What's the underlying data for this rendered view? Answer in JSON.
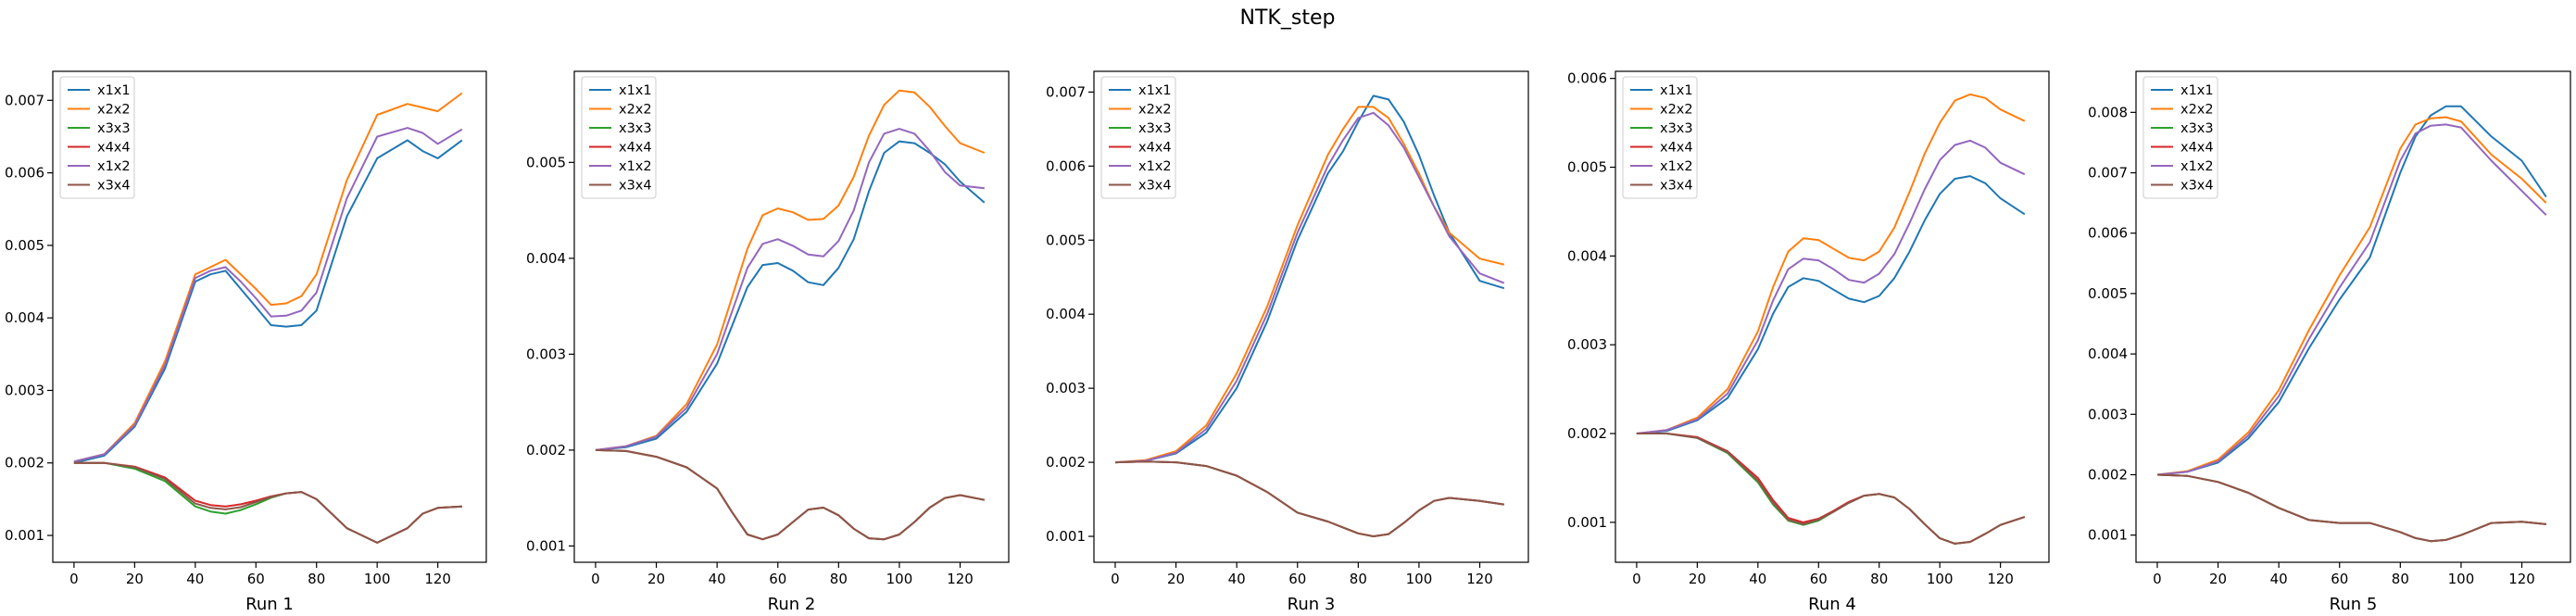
{
  "figure": {
    "title": "NTK_step"
  },
  "colors": {
    "x1x1": "#1f77b4",
    "x2x2": "#ff7f0e",
    "x3x3": "#2ca02c",
    "x4x4": "#d62728",
    "x1x2": "#9467bd",
    "x3x4": "#8c564b"
  },
  "chart_data": [
    {
      "type": "line",
      "title": "",
      "xlabel": "Run 1",
      "ylabel": "",
      "xlim": [
        -7,
        136
      ],
      "ylim": [
        0.00063,
        0.0074
      ],
      "xticks": [
        0,
        20,
        40,
        60,
        80,
        100,
        120
      ],
      "yticks": [
        0.001,
        0.002,
        0.003,
        0.004,
        0.005,
        0.006,
        0.007
      ],
      "ytick_labels": [
        "0.001",
        "0.002",
        "0.003",
        "0.004",
        "0.005",
        "0.006",
        "0.007"
      ],
      "grid": false,
      "legend": "upper-left",
      "x": [
        0,
        10,
        20,
        30,
        40,
        45,
        50,
        55,
        60,
        65,
        70,
        75,
        80,
        90,
        100,
        110,
        115,
        120,
        128
      ],
      "series": [
        {
          "name": "x1x1",
          "values": [
            0.002,
            0.0021,
            0.0025,
            0.0033,
            0.0045,
            0.0046,
            0.00465,
            0.0044,
            0.00415,
            0.0039,
            0.00388,
            0.0039,
            0.0041,
            0.0054,
            0.0062,
            0.00645,
            0.0063,
            0.0062,
            0.00645
          ]
        },
        {
          "name": "x2x2",
          "values": [
            0.00202,
            0.00212,
            0.00255,
            0.0034,
            0.0046,
            0.0047,
            0.0048,
            0.0046,
            0.0044,
            0.00418,
            0.0042,
            0.0043,
            0.0046,
            0.0059,
            0.0068,
            0.00695,
            0.0069,
            0.00685,
            0.0071
          ]
        },
        {
          "name": "x3x3",
          "values": [
            0.002,
            0.002,
            0.00192,
            0.00175,
            0.0014,
            0.00133,
            0.0013,
            0.00135,
            0.00143,
            0.00152,
            0.00158,
            0.0016,
            0.0015,
            0.0011,
            0.0009,
            0.0011,
            0.0013,
            0.00138,
            0.0014
          ]
        },
        {
          "name": "x4x4",
          "values": [
            0.002,
            0.002,
            0.00195,
            0.0018,
            0.00148,
            0.00142,
            0.0014,
            0.00143,
            0.00148,
            0.00154,
            0.00158,
            0.0016,
            0.0015,
            0.0011,
            0.0009,
            0.0011,
            0.0013,
            0.00138,
            0.0014
          ]
        },
        {
          "name": "x1x2",
          "values": [
            0.00202,
            0.00212,
            0.00252,
            0.00335,
            0.00455,
            0.00465,
            0.0047,
            0.0045,
            0.00427,
            0.00402,
            0.00403,
            0.0041,
            0.00435,
            0.00565,
            0.0065,
            0.00662,
            0.00655,
            0.0064,
            0.0066
          ]
        },
        {
          "name": "x3x4",
          "values": [
            0.002,
            0.002,
            0.00194,
            0.00178,
            0.00144,
            0.00138,
            0.00136,
            0.00139,
            0.00146,
            0.00153,
            0.00158,
            0.0016,
            0.0015,
            0.0011,
            0.0009,
            0.0011,
            0.0013,
            0.00138,
            0.0014
          ]
        }
      ]
    },
    {
      "type": "line",
      "title": "",
      "xlabel": "Run 2",
      "ylabel": "",
      "xlim": [
        -7,
        136
      ],
      "ylim": [
        0.00083,
        0.00595
      ],
      "xticks": [
        0,
        20,
        40,
        60,
        80,
        100,
        120
      ],
      "yticks": [
        0.001,
        0.002,
        0.003,
        0.004,
        0.005
      ],
      "ytick_labels": [
        "0.001",
        "0.002",
        "0.003",
        "0.004",
        "0.005"
      ],
      "grid": false,
      "legend": "upper-left",
      "x": [
        0,
        10,
        20,
        30,
        40,
        45,
        50,
        55,
        60,
        65,
        70,
        75,
        80,
        85,
        90,
        95,
        100,
        105,
        110,
        115,
        120,
        128
      ],
      "series": [
        {
          "name": "x1x1",
          "values": [
            0.002,
            0.00203,
            0.00212,
            0.0024,
            0.0029,
            0.0033,
            0.0037,
            0.00393,
            0.00395,
            0.00387,
            0.00375,
            0.00372,
            0.0039,
            0.0042,
            0.0047,
            0.0051,
            0.00522,
            0.0052,
            0.0051,
            0.00498,
            0.0048,
            0.00458
          ]
        },
        {
          "name": "x2x2",
          "values": [
            0.002,
            0.00204,
            0.00215,
            0.00248,
            0.0031,
            0.0036,
            0.0041,
            0.00445,
            0.00452,
            0.00448,
            0.0044,
            0.00441,
            0.00455,
            0.00485,
            0.00528,
            0.0056,
            0.00575,
            0.00573,
            0.00558,
            0.00538,
            0.0052,
            0.0051
          ]
        },
        {
          "name": "x3x3",
          "values": [
            0.002,
            0.00199,
            0.00193,
            0.00182,
            0.0016,
            0.00135,
            0.00112,
            0.00107,
            0.00112,
            0.00125,
            0.00138,
            0.0014,
            0.00132,
            0.00118,
            0.00108,
            0.00107,
            0.00112,
            0.00125,
            0.0014,
            0.0015,
            0.00153,
            0.00148
          ]
        },
        {
          "name": "x4x4",
          "values": [
            0.002,
            0.00199,
            0.00193,
            0.00182,
            0.0016,
            0.00135,
            0.00112,
            0.00107,
            0.00112,
            0.00125,
            0.00138,
            0.0014,
            0.00132,
            0.00118,
            0.00108,
            0.00107,
            0.00112,
            0.00125,
            0.0014,
            0.0015,
            0.00153,
            0.00148
          ]
        },
        {
          "name": "x1x2",
          "values": [
            0.002,
            0.00204,
            0.00214,
            0.00244,
            0.003,
            0.00345,
            0.0039,
            0.00415,
            0.0042,
            0.00413,
            0.00404,
            0.00402,
            0.00418,
            0.0045,
            0.005,
            0.0053,
            0.00535,
            0.0053,
            0.00512,
            0.0049,
            0.00476,
            0.00473
          ]
        },
        {
          "name": "x3x4",
          "values": [
            0.002,
            0.00199,
            0.00193,
            0.00182,
            0.0016,
            0.00135,
            0.00112,
            0.00107,
            0.00112,
            0.00125,
            0.00138,
            0.0014,
            0.00132,
            0.00118,
            0.00108,
            0.00107,
            0.00112,
            0.00125,
            0.0014,
            0.0015,
            0.00153,
            0.00148
          ]
        }
      ]
    },
    {
      "type": "line",
      "title": "",
      "xlabel": "Run 3",
      "ylabel": "",
      "xlim": [
        -7,
        136
      ],
      "ylim": [
        0.00065,
        0.00728
      ],
      "xticks": [
        0,
        20,
        40,
        60,
        80,
        100,
        120
      ],
      "yticks": [
        0.001,
        0.002,
        0.003,
        0.004,
        0.005,
        0.006,
        0.007
      ],
      "ytick_labels": [
        "0.001",
        "0.002",
        "0.003",
        "0.004",
        "0.005",
        "0.006",
        "0.007"
      ],
      "grid": false,
      "legend": "upper-left",
      "x": [
        0,
        10,
        20,
        30,
        40,
        50,
        60,
        70,
        75,
        80,
        85,
        90,
        95,
        100,
        105,
        110,
        120,
        128
      ],
      "series": [
        {
          "name": "x1x1",
          "values": [
            0.002,
            0.00202,
            0.00212,
            0.0024,
            0.003,
            0.0039,
            0.005,
            0.0059,
            0.0062,
            0.0066,
            0.00695,
            0.0069,
            0.0066,
            0.00615,
            0.0056,
            0.0051,
            0.00445,
            0.00435
          ]
        },
        {
          "name": "x2x2",
          "values": [
            0.002,
            0.00203,
            0.00215,
            0.0025,
            0.0032,
            0.0041,
            0.0052,
            0.00615,
            0.0065,
            0.0068,
            0.0068,
            0.00665,
            0.0063,
            0.0059,
            0.00545,
            0.0051,
            0.00475,
            0.00467
          ]
        },
        {
          "name": "x3x3",
          "values": [
            0.002,
            0.00201,
            0.002,
            0.00195,
            0.00182,
            0.0016,
            0.00132,
            0.0012,
            0.00112,
            0.00104,
            0.001,
            0.00103,
            0.00118,
            0.00135,
            0.00148,
            0.00152,
            0.00148,
            0.00143
          ]
        },
        {
          "name": "x4x4",
          "values": [
            0.002,
            0.00201,
            0.002,
            0.00195,
            0.00182,
            0.0016,
            0.00132,
            0.0012,
            0.00112,
            0.00104,
            0.001,
            0.00103,
            0.00118,
            0.00135,
            0.00148,
            0.00152,
            0.00148,
            0.00143
          ]
        },
        {
          "name": "x1x2",
          "values": [
            0.002,
            0.00202,
            0.00213,
            0.00245,
            0.0031,
            0.004,
            0.0051,
            0.006,
            0.00635,
            0.00665,
            0.00672,
            0.00655,
            0.00625,
            0.00585,
            0.00545,
            0.00505,
            0.00455,
            0.00442
          ]
        },
        {
          "name": "x3x4",
          "values": [
            0.002,
            0.00201,
            0.002,
            0.00195,
            0.00182,
            0.0016,
            0.00132,
            0.0012,
            0.00112,
            0.00104,
            0.001,
            0.00103,
            0.00118,
            0.00135,
            0.00148,
            0.00152,
            0.00148,
            0.00143
          ]
        }
      ]
    },
    {
      "type": "line",
      "title": "",
      "xlabel": "Run 4",
      "ylabel": "",
      "xlim": [
        -7,
        136
      ],
      "ylim": [
        0.00055,
        0.00608
      ],
      "xticks": [
        0,
        20,
        40,
        60,
        80,
        100,
        120
      ],
      "yticks": [
        0.001,
        0.002,
        0.003,
        0.004,
        0.005,
        0.006
      ],
      "ytick_labels": [
        "0.001",
        "0.002",
        "0.003",
        "0.004",
        "0.005",
        "0.006"
      ],
      "grid": false,
      "legend": "upper-left",
      "x": [
        0,
        10,
        20,
        30,
        40,
        45,
        50,
        55,
        60,
        65,
        70,
        75,
        80,
        85,
        90,
        95,
        100,
        105,
        110,
        115,
        120,
        128
      ],
      "series": [
        {
          "name": "x1x1",
          "values": [
            0.002,
            0.00203,
            0.00215,
            0.0024,
            0.00295,
            0.00335,
            0.00365,
            0.00375,
            0.00372,
            0.00362,
            0.00352,
            0.00348,
            0.00355,
            0.00375,
            0.00405,
            0.0044,
            0.0047,
            0.00487,
            0.0049,
            0.00482,
            0.00465,
            0.00447
          ]
        },
        {
          "name": "x2x2",
          "values": [
            0.002,
            0.00204,
            0.00218,
            0.0025,
            0.00315,
            0.00365,
            0.00405,
            0.0042,
            0.00418,
            0.00408,
            0.00398,
            0.00395,
            0.00405,
            0.00432,
            0.00472,
            0.00515,
            0.0055,
            0.00575,
            0.00582,
            0.00578,
            0.00565,
            0.00552
          ]
        },
        {
          "name": "x3x3",
          "values": [
            0.002,
            0.002,
            0.00195,
            0.00178,
            0.00145,
            0.0012,
            0.00102,
            0.00097,
            0.00102,
            0.00112,
            0.00122,
            0.0013,
            0.00132,
            0.00128,
            0.00115,
            0.00098,
            0.00082,
            0.00076,
            0.00078,
            0.00087,
            0.00097,
            0.00106
          ]
        },
        {
          "name": "x4x4",
          "values": [
            0.002,
            0.002,
            0.00196,
            0.0018,
            0.0015,
            0.00125,
            0.00105,
            0.001,
            0.00104,
            0.00113,
            0.00123,
            0.0013,
            0.00132,
            0.00128,
            0.00115,
            0.00098,
            0.00082,
            0.00076,
            0.00078,
            0.00087,
            0.00097,
            0.00106
          ]
        },
        {
          "name": "x1x2",
          "values": [
            0.002,
            0.00204,
            0.00216,
            0.00245,
            0.00305,
            0.0035,
            0.00385,
            0.00397,
            0.00395,
            0.00385,
            0.00373,
            0.0037,
            0.0038,
            0.00402,
            0.00437,
            0.00475,
            0.00508,
            0.00525,
            0.0053,
            0.00522,
            0.00505,
            0.00492
          ]
        },
        {
          "name": "x3x4",
          "values": [
            0.002,
            0.002,
            0.00195,
            0.00179,
            0.00147,
            0.00122,
            0.00103,
            0.00098,
            0.00103,
            0.00112,
            0.00122,
            0.0013,
            0.00132,
            0.00128,
            0.00115,
            0.00098,
            0.00082,
            0.00076,
            0.00078,
            0.00087,
            0.00097,
            0.00106
          ]
        }
      ]
    },
    {
      "type": "line",
      "title": "",
      "xlabel": "Run 5",
      "ylabel": "",
      "xlim": [
        -7,
        136
      ],
      "ylim": [
        0.00055,
        0.00868
      ],
      "xticks": [
        0,
        20,
        40,
        60,
        80,
        100,
        120
      ],
      "yticks": [
        0.001,
        0.002,
        0.003,
        0.004,
        0.005,
        0.006,
        0.007,
        0.008
      ],
      "ytick_labels": [
        "0.001",
        "0.002",
        "0.003",
        "0.004",
        "0.005",
        "0.006",
        "0.007",
        "0.008"
      ],
      "grid": false,
      "legend": "upper-left",
      "x": [
        0,
        10,
        20,
        30,
        40,
        50,
        60,
        70,
        80,
        85,
        90,
        95,
        100,
        110,
        120,
        128
      ],
      "series": [
        {
          "name": "x1x1",
          "values": [
            0.002,
            0.00205,
            0.0022,
            0.0026,
            0.0032,
            0.0041,
            0.0049,
            0.0056,
            0.007,
            0.0076,
            0.00795,
            0.0081,
            0.0081,
            0.0076,
            0.0072,
            0.0066
          ]
        },
        {
          "name": "x2x2",
          "values": [
            0.002,
            0.00206,
            0.00225,
            0.0027,
            0.0034,
            0.0044,
            0.0053,
            0.0061,
            0.0074,
            0.0078,
            0.0079,
            0.00792,
            0.00785,
            0.0073,
            0.0069,
            0.0065
          ]
        },
        {
          "name": "x3x3",
          "values": [
            0.002,
            0.00198,
            0.00188,
            0.0017,
            0.00145,
            0.00125,
            0.0012,
            0.0012,
            0.00105,
            0.00095,
            0.0009,
            0.00092,
            0.001,
            0.0012,
            0.00122,
            0.00118
          ]
        },
        {
          "name": "x4x4",
          "values": [
            0.002,
            0.00198,
            0.00188,
            0.0017,
            0.00145,
            0.00125,
            0.0012,
            0.0012,
            0.00105,
            0.00095,
            0.0009,
            0.00092,
            0.001,
            0.0012,
            0.00122,
            0.00118
          ]
        },
        {
          "name": "x1x2",
          "values": [
            0.002,
            0.00205,
            0.00222,
            0.00265,
            0.0033,
            0.00425,
            0.0051,
            0.00585,
            0.0072,
            0.00765,
            0.00778,
            0.0078,
            0.00775,
            0.0072,
            0.0067,
            0.0063
          ]
        },
        {
          "name": "x3x4",
          "values": [
            0.002,
            0.00198,
            0.00188,
            0.0017,
            0.00145,
            0.00125,
            0.0012,
            0.0012,
            0.00105,
            0.00095,
            0.0009,
            0.00092,
            0.001,
            0.0012,
            0.00122,
            0.00118
          ]
        }
      ]
    }
  ]
}
